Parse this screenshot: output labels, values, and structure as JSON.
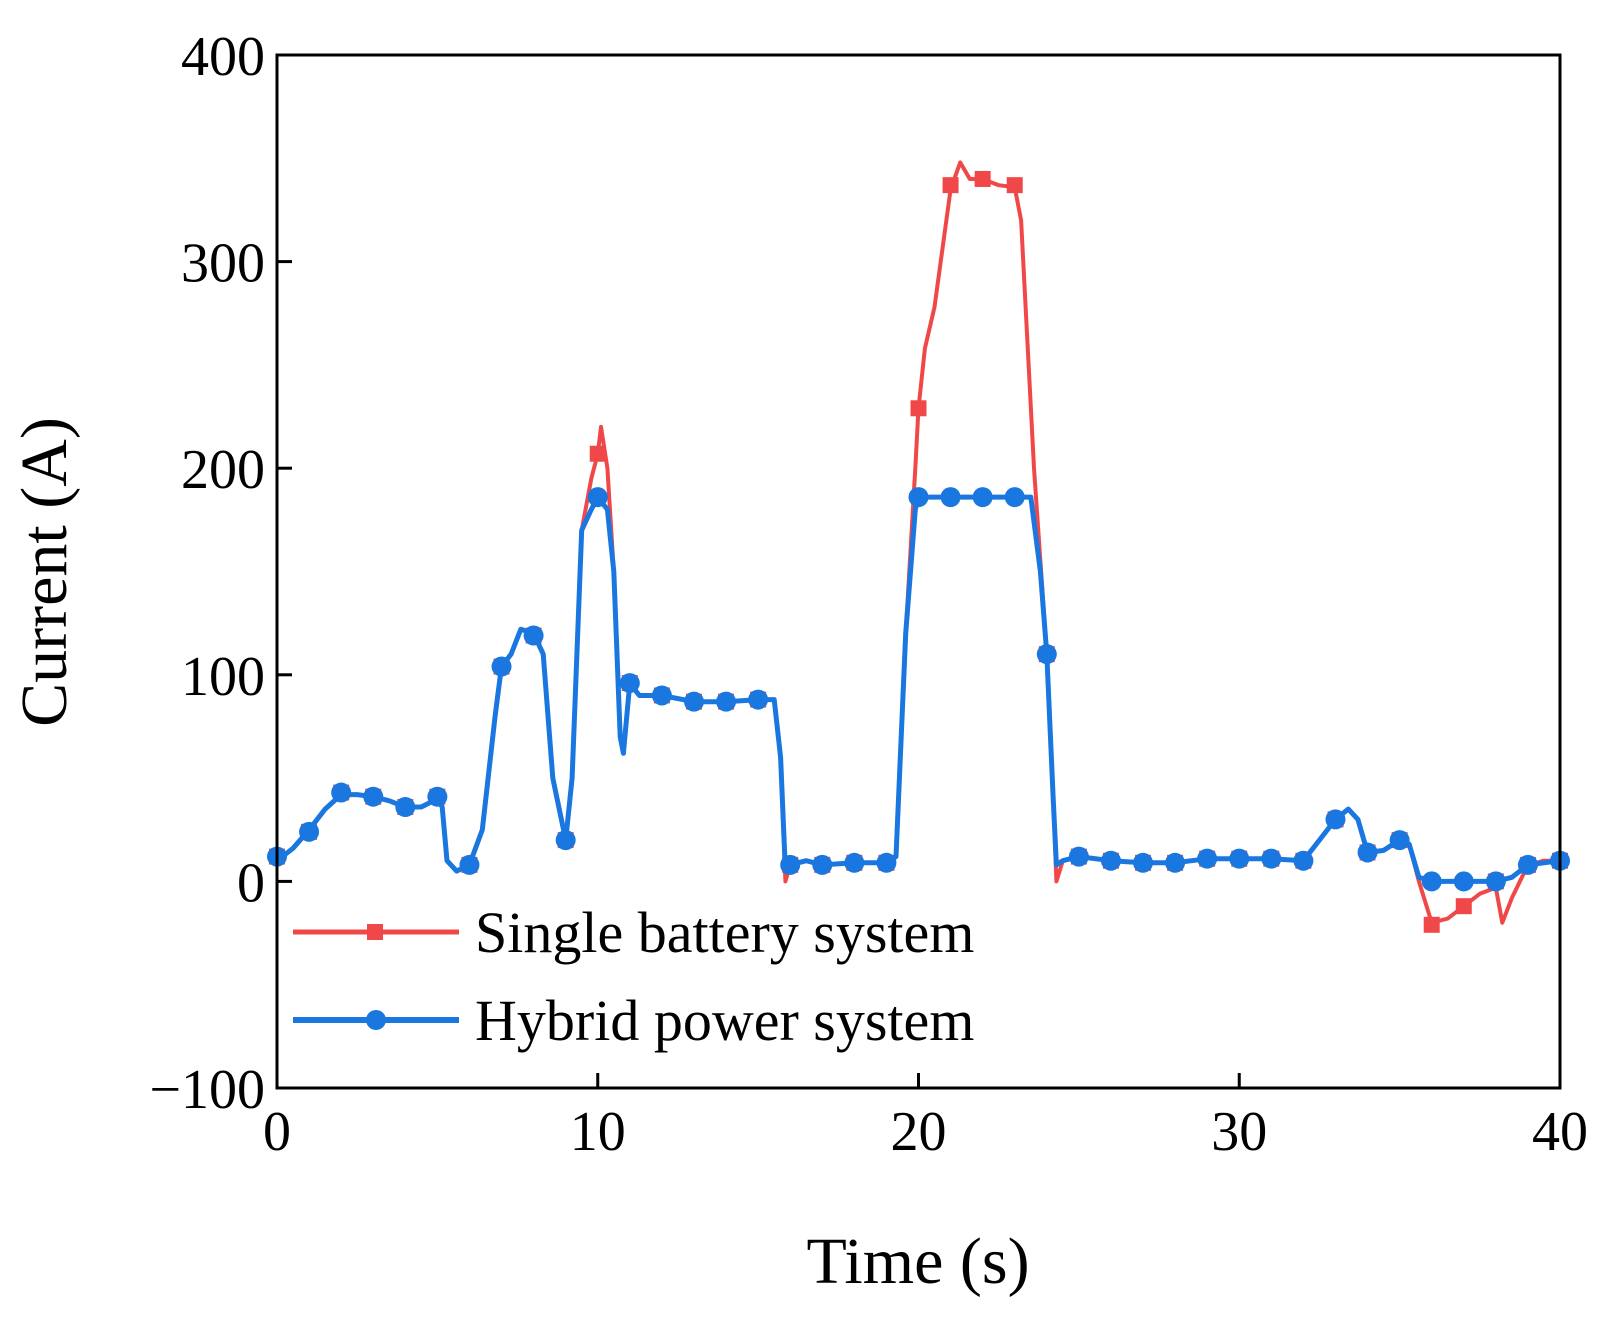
{
  "chart_data": {
    "type": "line",
    "title": "",
    "xlabel": "Time (s)",
    "ylabel": "Current (A)",
    "xlim": [
      0,
      40
    ],
    "ylim": [
      -100,
      400
    ],
    "x_ticks": [
      0,
      10,
      20,
      30,
      40
    ],
    "y_ticks": [
      -100,
      0,
      100,
      200,
      300,
      400
    ],
    "x_tick_labels": [
      "0",
      "10",
      "20",
      "30",
      "40"
    ],
    "y_tick_labels": [
      "−100",
      "0",
      "100",
      "200",
      "300",
      "400"
    ],
    "grid": false,
    "legend_position": "lower-left",
    "series": [
      {
        "name": "Single battery system",
        "color": "#f04848",
        "marker": "square",
        "points": [
          [
            0,
            10
          ],
          [
            0.5,
            16
          ],
          [
            1,
            25
          ],
          [
            1.5,
            35
          ],
          [
            2,
            42
          ],
          [
            2.5,
            42
          ],
          [
            3,
            41
          ],
          [
            3.5,
            39
          ],
          [
            4,
            36
          ],
          [
            4.5,
            36
          ],
          [
            5,
            40
          ],
          [
            5.15,
            36
          ],
          [
            5.3,
            10
          ],
          [
            5.6,
            5
          ],
          [
            6,
            8
          ],
          [
            6.4,
            25
          ],
          [
            6.8,
            80
          ],
          [
            7,
            104
          ],
          [
            7.3,
            110
          ],
          [
            7.6,
            122
          ],
          [
            8,
            120
          ],
          [
            8.3,
            110
          ],
          [
            8.6,
            50
          ],
          [
            9,
            20
          ],
          [
            9.2,
            50
          ],
          [
            9.5,
            170
          ],
          [
            9.8,
            195
          ],
          [
            10,
            207
          ],
          [
            10.1,
            220
          ],
          [
            10.3,
            200
          ],
          [
            10.5,
            150
          ],
          [
            10.7,
            70
          ],
          [
            10.8,
            62
          ],
          [
            11,
            96
          ],
          [
            11.3,
            90
          ],
          [
            12,
            90
          ],
          [
            13,
            87
          ],
          [
            14,
            87
          ],
          [
            15,
            88
          ],
          [
            15.5,
            88
          ],
          [
            15.7,
            60
          ],
          [
            15.85,
            0
          ],
          [
            16,
            8
          ],
          [
            16.5,
            10
          ],
          [
            17,
            8
          ],
          [
            18,
            9
          ],
          [
            19,
            9
          ],
          [
            19.3,
            12
          ],
          [
            19.6,
            120
          ],
          [
            19.9,
            200
          ],
          [
            20,
            229
          ],
          [
            20.2,
            258
          ],
          [
            20.5,
            278
          ],
          [
            21,
            335
          ],
          [
            21.3,
            348
          ],
          [
            21.6,
            340
          ],
          [
            22,
            340
          ],
          [
            22.5,
            337
          ],
          [
            23,
            336
          ],
          [
            23.2,
            320
          ],
          [
            23.6,
            200
          ],
          [
            24,
            110
          ],
          [
            24.2,
            40
          ],
          [
            24.3,
            0
          ],
          [
            24.5,
            10
          ],
          [
            25,
            12
          ],
          [
            26,
            10
          ],
          [
            27,
            9
          ],
          [
            28,
            9
          ],
          [
            29,
            11
          ],
          [
            30,
            11
          ],
          [
            31,
            11
          ],
          [
            32,
            10
          ],
          [
            32.5,
            20
          ],
          [
            33,
            30
          ],
          [
            33.4,
            35
          ],
          [
            33.7,
            30
          ],
          [
            34,
            14
          ],
          [
            34.5,
            15
          ],
          [
            35,
            20
          ],
          [
            35.3,
            18
          ],
          [
            35.6,
            0
          ],
          [
            36,
            -20
          ],
          [
            36.5,
            -18
          ],
          [
            37,
            -12
          ],
          [
            37.5,
            -6
          ],
          [
            38,
            -3
          ],
          [
            38.2,
            -20
          ],
          [
            38.5,
            -8
          ],
          [
            39,
            8
          ],
          [
            39.5,
            10
          ],
          [
            40,
            10
          ]
        ],
        "marker_points": [
          [
            0,
            12
          ],
          [
            1,
            24
          ],
          [
            2,
            43
          ],
          [
            3,
            41
          ],
          [
            4,
            36
          ],
          [
            5,
            41
          ],
          [
            6,
            8
          ],
          [
            7,
            104
          ],
          [
            8,
            119
          ],
          [
            9,
            20
          ],
          [
            10,
            207
          ],
          [
            11,
            96
          ],
          [
            12,
            90
          ],
          [
            13,
            87
          ],
          [
            14,
            87
          ],
          [
            15,
            88
          ],
          [
            16,
            8
          ],
          [
            17,
            8
          ],
          [
            18,
            9
          ],
          [
            19,
            9
          ],
          [
            20,
            229
          ],
          [
            21,
            337
          ],
          [
            22,
            340
          ],
          [
            23,
            337
          ],
          [
            24,
            110
          ],
          [
            25,
            12
          ],
          [
            26,
            10
          ],
          [
            27,
            9
          ],
          [
            28,
            9
          ],
          [
            29,
            11
          ],
          [
            30,
            11
          ],
          [
            31,
            11
          ],
          [
            32,
            10
          ],
          [
            33,
            30
          ],
          [
            34,
            14
          ],
          [
            35,
            20
          ],
          [
            36,
            -21
          ],
          [
            37,
            -12
          ],
          [
            38,
            0
          ],
          [
            39,
            8
          ],
          [
            40,
            10
          ]
        ]
      },
      {
        "name": "Hybrid power system",
        "color": "#1a77e0",
        "marker": "circle",
        "points": [
          [
            0,
            10
          ],
          [
            0.5,
            16
          ],
          [
            1,
            25
          ],
          [
            1.5,
            35
          ],
          [
            2,
            42
          ],
          [
            2.5,
            42
          ],
          [
            3,
            41
          ],
          [
            3.5,
            39
          ],
          [
            4,
            36
          ],
          [
            4.5,
            36
          ],
          [
            5,
            40
          ],
          [
            5.15,
            36
          ],
          [
            5.3,
            10
          ],
          [
            5.6,
            5
          ],
          [
            6,
            8
          ],
          [
            6.4,
            25
          ],
          [
            6.8,
            80
          ],
          [
            7,
            104
          ],
          [
            7.3,
            110
          ],
          [
            7.6,
            122
          ],
          [
            8,
            120
          ],
          [
            8.3,
            110
          ],
          [
            8.6,
            50
          ],
          [
            9,
            20
          ],
          [
            9.2,
            50
          ],
          [
            9.5,
            170
          ],
          [
            9.8,
            180
          ],
          [
            10,
            186
          ],
          [
            10.3,
            180
          ],
          [
            10.5,
            150
          ],
          [
            10.7,
            70
          ],
          [
            10.8,
            62
          ],
          [
            11,
            96
          ],
          [
            11.3,
            90
          ],
          [
            12,
            90
          ],
          [
            13,
            87
          ],
          [
            14,
            87
          ],
          [
            15,
            88
          ],
          [
            15.5,
            88
          ],
          [
            15.7,
            60
          ],
          [
            15.85,
            5
          ],
          [
            16,
            8
          ],
          [
            16.5,
            10
          ],
          [
            17,
            8
          ],
          [
            18,
            9
          ],
          [
            19,
            9
          ],
          [
            19.3,
            12
          ],
          [
            19.6,
            120
          ],
          [
            19.9,
            180
          ],
          [
            20,
            186
          ],
          [
            21,
            186
          ],
          [
            22,
            186
          ],
          [
            23,
            186
          ],
          [
            23.5,
            186
          ],
          [
            23.8,
            150
          ],
          [
            24,
            110
          ],
          [
            24.2,
            40
          ],
          [
            24.3,
            8
          ],
          [
            24.5,
            10
          ],
          [
            25,
            12
          ],
          [
            26,
            10
          ],
          [
            27,
            9
          ],
          [
            28,
            9
          ],
          [
            29,
            11
          ],
          [
            30,
            11
          ],
          [
            31,
            11
          ],
          [
            32,
            10
          ],
          [
            32.5,
            20
          ],
          [
            33,
            30
          ],
          [
            33.4,
            35
          ],
          [
            33.7,
            30
          ],
          [
            34,
            14
          ],
          [
            34.5,
            15
          ],
          [
            35,
            20
          ],
          [
            35.3,
            18
          ],
          [
            35.6,
            2
          ],
          [
            36,
            0
          ],
          [
            37,
            0
          ],
          [
            38,
            0
          ],
          [
            38.5,
            2
          ],
          [
            39,
            8
          ],
          [
            39.5,
            9
          ],
          [
            40,
            10
          ]
        ],
        "marker_points": [
          [
            0,
            12
          ],
          [
            1,
            24
          ],
          [
            2,
            43
          ],
          [
            3,
            41
          ],
          [
            4,
            36
          ],
          [
            5,
            41
          ],
          [
            6,
            8
          ],
          [
            7,
            104
          ],
          [
            8,
            119
          ],
          [
            9,
            20
          ],
          [
            10,
            186
          ],
          [
            11,
            96
          ],
          [
            12,
            90
          ],
          [
            13,
            87
          ],
          [
            14,
            87
          ],
          [
            15,
            88
          ],
          [
            16,
            8
          ],
          [
            17,
            8
          ],
          [
            18,
            9
          ],
          [
            19,
            9
          ],
          [
            20,
            186
          ],
          [
            21,
            186
          ],
          [
            22,
            186
          ],
          [
            23,
            186
          ],
          [
            24,
            110
          ],
          [
            25,
            12
          ],
          [
            26,
            10
          ],
          [
            27,
            9
          ],
          [
            28,
            9
          ],
          [
            29,
            11
          ],
          [
            30,
            11
          ],
          [
            31,
            11
          ],
          [
            32,
            10
          ],
          [
            33,
            30
          ],
          [
            34,
            14
          ],
          [
            35,
            20
          ],
          [
            36,
            0
          ],
          [
            37,
            0
          ],
          [
            38,
            0
          ],
          [
            39,
            8
          ],
          [
            40,
            10
          ]
        ]
      }
    ]
  }
}
